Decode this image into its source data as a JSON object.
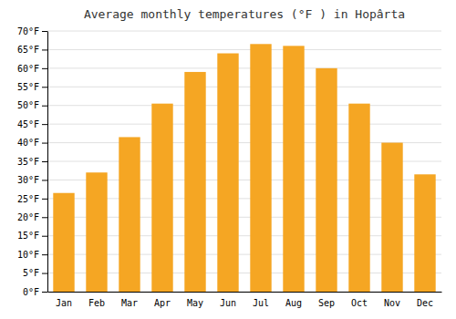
{
  "chart_data": {
    "type": "bar",
    "title": "Average monthly temperatures (°F ) in Hopârta",
    "categories": [
      "Jan",
      "Feb",
      "Mar",
      "Apr",
      "May",
      "Jun",
      "Jul",
      "Aug",
      "Sep",
      "Oct",
      "Nov",
      "Dec"
    ],
    "values": [
      26.5,
      32.0,
      41.5,
      50.5,
      59.0,
      64.0,
      66.5,
      66.0,
      60.0,
      50.5,
      40.0,
      31.5
    ],
    "color": "#F5A623",
    "ylim": [
      0,
      70
    ],
    "yticks": [
      {
        "value": 0,
        "label": "0°F"
      },
      {
        "value": 5,
        "label": "5°F"
      },
      {
        "value": 10,
        "label": "10°F"
      },
      {
        "value": 15,
        "label": "15°F"
      },
      {
        "value": 20,
        "label": "20°F"
      },
      {
        "value": 25,
        "label": "25°F"
      },
      {
        "value": 30,
        "label": "30°F"
      },
      {
        "value": 35,
        "label": "35°F"
      },
      {
        "value": 40,
        "label": "40°F"
      },
      {
        "value": 45,
        "label": "45°F"
      },
      {
        "value": 50,
        "label": "50°F"
      },
      {
        "value": 55,
        "label": "55°F"
      },
      {
        "value": 60,
        "label": "60°F"
      },
      {
        "value": 65,
        "label": "65°F"
      },
      {
        "value": 70,
        "label": "70°F"
      }
    ],
    "grid": true
  }
}
